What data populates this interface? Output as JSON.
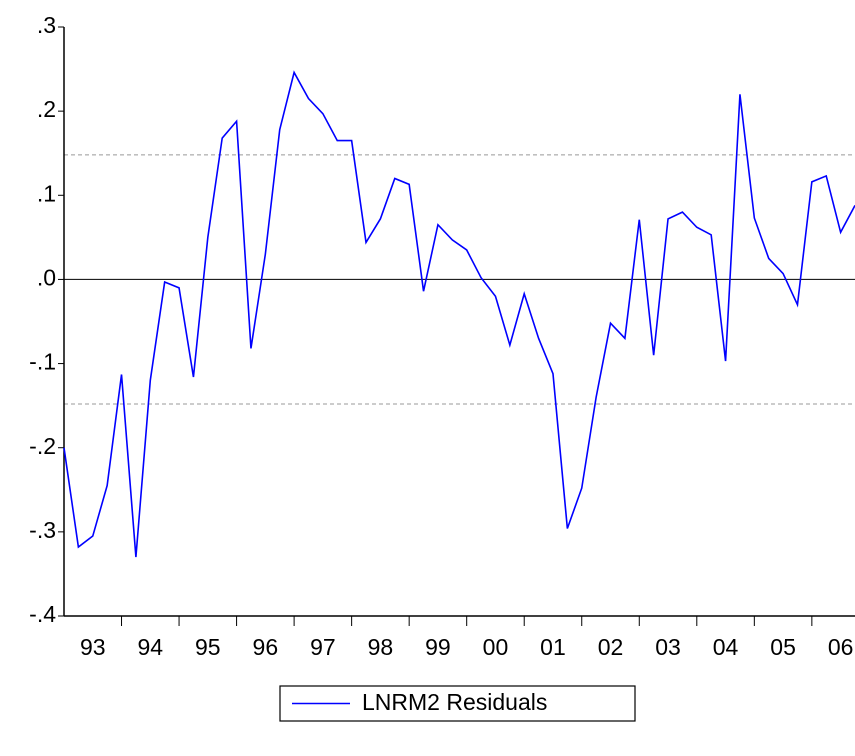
{
  "chart_data": {
    "type": "line",
    "categories": [
      null,
      null,
      "93",
      null,
      null,
      null,
      "94",
      null,
      null,
      null,
      "95",
      null,
      null,
      null,
      "96",
      null,
      null,
      null,
      "97",
      null,
      null,
      null,
      "98",
      null,
      null,
      null,
      "99",
      null,
      null,
      null,
      "00",
      null,
      null,
      null,
      "01",
      null,
      null,
      null,
      "02",
      null,
      null,
      null,
      "03",
      null,
      null,
      null,
      "04",
      null,
      null,
      null,
      "05",
      null,
      null,
      null,
      "06",
      null
    ],
    "series": [
      {
        "name": "LNRM2 Residuals",
        "color": "#0000ff",
        "values": [
          -0.2,
          -0.318,
          -0.305,
          -0.245,
          -0.113,
          -0.33,
          -0.12,
          -0.003,
          -0.01,
          -0.116,
          0.05,
          0.168,
          0.188,
          -0.082,
          0.03,
          0.178,
          0.246,
          0.215,
          0.197,
          0.165,
          0.165,
          0.044,
          0.072,
          0.12,
          0.113,
          -0.014,
          0.065,
          0.047,
          0.035,
          0.002,
          -0.02,
          -0.078,
          -0.017,
          -0.07,
          -0.112,
          -0.296,
          -0.248,
          -0.14,
          -0.052,
          -0.07,
          0.071,
          -0.09,
          0.072,
          0.08,
          0.062,
          0.053,
          -0.097,
          0.22,
          0.073,
          0.025,
          0.007,
          -0.03,
          0.116,
          0.123,
          0.056,
          0.088
        ]
      }
    ],
    "reference_lines": [
      0.148,
      -0.148
    ],
    "ylim": [
      -0.4,
      0.3
    ],
    "yticks": [
      {
        "value": -0.4,
        "label": "-.4"
      },
      {
        "value": -0.3,
        "label": "-.3"
      },
      {
        "value": -0.2,
        "label": "-.2"
      },
      {
        "value": -0.1,
        "label": "-.1"
      },
      {
        "value": 0,
        "label": ".0"
      },
      {
        "value": 0.1,
        "label": ".1"
      },
      {
        "value": 0.2,
        "label": ".2"
      },
      {
        "value": 0.3,
        "label": ".3"
      }
    ],
    "legend": "bottom"
  }
}
